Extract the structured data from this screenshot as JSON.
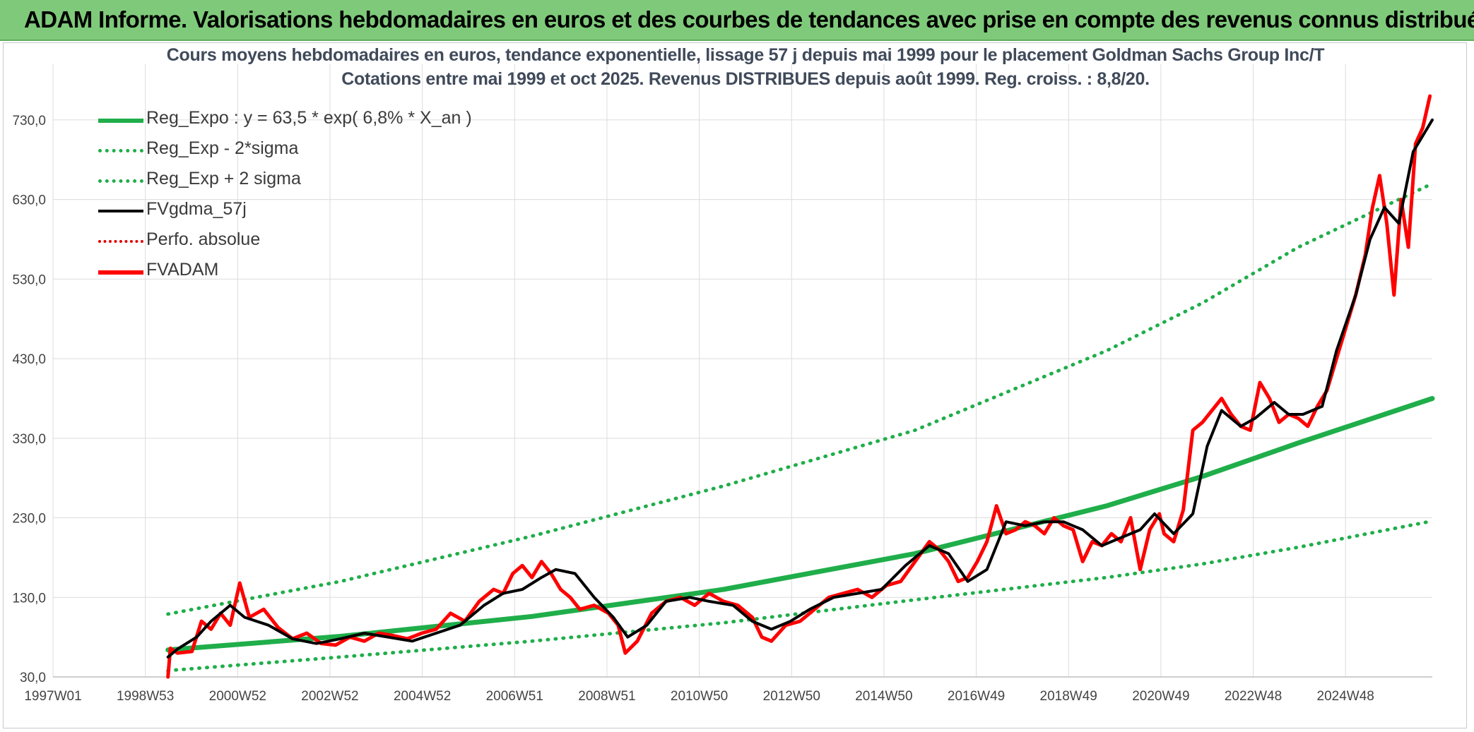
{
  "banner": {
    "title": "ADAM Informe. Valorisations hebdomadaires en euros et des courbes de tendances avec prise en compte des revenus connus distribués"
  },
  "colors": {
    "banner_bg": "#7fca7a",
    "reg_expo": "#1fae4a",
    "sigma": "#1fae4a",
    "gdma": "#000000",
    "perfo": "#e30000",
    "adam": "#ff0000",
    "grid": "#dcdcdc"
  },
  "chart_data": {
    "type": "line",
    "title": "Cours moyens hebdomadaires en euros, tendance exponentielle, lissage 57 j depuis mai 1999 pour le placement Goldman Sachs Group Inc/T",
    "subtitle": "Cotations entre mai 1999 et oct 2025. Revenus DISTRIBUES depuis août 1999. Reg. croiss. : 8,8/20.",
    "x_ticks": [
      "1997W01",
      "1998W53",
      "2000W52",
      "2002W52",
      "2004W52",
      "2006W51",
      "2008W51",
      "2010W50",
      "2012W50",
      "2014W50",
      "2016W49",
      "2018W49",
      "2020W49",
      "2022W48",
      "2024W48"
    ],
    "y_ticks": [
      "30,0",
      "130,0",
      "230,0",
      "330,0",
      "430,0",
      "530,0",
      "630,0",
      "730,0"
    ],
    "ylim": [
      30,
      800
    ],
    "xlim": [
      1997.0,
      2025.8
    ],
    "legend_position": "top-left",
    "grid": true,
    "series": [
      {
        "name": "Reg_Expo : y = 63,5 * exp( 6,8% *  X_an )",
        "style": "solid-thick",
        "x": [
          1999.4,
          2003,
          2007,
          2011,
          2015,
          2019,
          2021,
          2023,
          2025.8
        ],
        "values": [
          64,
          81,
          106,
          140,
          185,
          245,
          282,
          324,
          380
        ]
      },
      {
        "name": "Reg_Exp - 2*sigma",
        "style": "dotted",
        "x": [
          1999.4,
          2003,
          2007,
          2011,
          2015,
          2019,
          2021,
          2023,
          2025.8
        ],
        "values": [
          38,
          55,
          75,
          98,
          127,
          155,
          172,
          193,
          226
        ]
      },
      {
        "name": "Reg_Exp + 2 sigma",
        "style": "dotted",
        "x": [
          1999.4,
          2003,
          2007,
          2011,
          2015,
          2019,
          2021,
          2023,
          2025.8
        ],
        "values": [
          109,
          150,
          207,
          270,
          340,
          440,
          500,
          570,
          650
        ]
      },
      {
        "name": "FVgdma_57j",
        "style": "solid-thin",
        "x": [
          1999.4,
          1999.6,
          2000.0,
          2000.3,
          2000.7,
          2001.0,
          2001.5,
          2002.0,
          2002.5,
          2003.0,
          2003.5,
          2004.0,
          2004.5,
          2005.0,
          2005.5,
          2006.0,
          2006.4,
          2006.8,
          2007.2,
          2007.5,
          2007.9,
          2008.3,
          2008.7,
          2009.0,
          2009.4,
          2009.8,
          2010.3,
          2010.7,
          2011.2,
          2011.6,
          2012.0,
          2012.4,
          2012.8,
          2013.3,
          2013.8,
          2014.3,
          2014.8,
          2015.3,
          2015.7,
          2016.1,
          2016.5,
          2016.9,
          2017.3,
          2017.7,
          2018.1,
          2018.5,
          2018.9,
          2019.3,
          2019.7,
          2020.0,
          2020.4,
          2020.8,
          2021.1,
          2021.4,
          2021.8,
          2022.1,
          2022.5,
          2022.8,
          2023.1,
          2023.5,
          2023.8,
          2024.2,
          2024.5,
          2024.8,
          2025.1,
          2025.4,
          2025.8
        ],
        "values": [
          55,
          65,
          80,
          100,
          120,
          105,
          95,
          78,
          72,
          78,
          85,
          80,
          75,
          85,
          95,
          120,
          135,
          140,
          155,
          165,
          160,
          130,
          105,
          80,
          95,
          125,
          130,
          125,
          120,
          100,
          90,
          100,
          115,
          130,
          135,
          140,
          170,
          195,
          185,
          150,
          165,
          225,
          220,
          225,
          225,
          215,
          195,
          205,
          215,
          235,
          210,
          235,
          320,
          365,
          345,
          355,
          375,
          360,
          360,
          370,
          440,
          510,
          580,
          620,
          600,
          690,
          730
        ]
      },
      {
        "name": "Perfo. absolue",
        "style": "dotted-red",
        "x": [],
        "values": []
      },
      {
        "name": "FVADAM",
        "style": "solid-thick",
        "x": [
          1999.4,
          1999.45,
          1999.6,
          1999.9,
          2000.1,
          2000.3,
          2000.5,
          2000.7,
          2000.9,
          2001.1,
          2001.4,
          2001.7,
          2002.0,
          2002.3,
          2002.6,
          2002.9,
          2003.2,
          2003.5,
          2003.8,
          2004.1,
          2004.4,
          2004.7,
          2005.0,
          2005.3,
          2005.6,
          2005.9,
          2006.2,
          2006.4,
          2006.6,
          2006.8,
          2007.0,
          2007.2,
          2007.4,
          2007.6,
          2007.8,
          2008.0,
          2008.3,
          2008.6,
          2008.8,
          2008.95,
          2009.2,
          2009.5,
          2009.8,
          2010.1,
          2010.4,
          2010.7,
          2011.0,
          2011.3,
          2011.6,
          2011.8,
          2012.0,
          2012.3,
          2012.6,
          2012.9,
          2013.2,
          2013.5,
          2013.8,
          2014.1,
          2014.4,
          2014.7,
          2015.0,
          2015.3,
          2015.5,
          2015.7,
          2015.9,
          2016.1,
          2016.3,
          2016.5,
          2016.7,
          2016.9,
          2017.1,
          2017.3,
          2017.5,
          2017.7,
          2017.9,
          2018.1,
          2018.3,
          2018.5,
          2018.7,
          2018.9,
          2019.1,
          2019.3,
          2019.5,
          2019.7,
          2019.9,
          2020.1,
          2020.2,
          2020.4,
          2020.6,
          2020.8,
          2021.0,
          2021.2,
          2021.4,
          2021.6,
          2021.8,
          2022.0,
          2022.2,
          2022.4,
          2022.6,
          2022.8,
          2023.0,
          2023.2,
          2023.4,
          2023.6,
          2023.8,
          2024.0,
          2024.2,
          2024.4,
          2024.55,
          2024.7,
          2024.85,
          2025.0,
          2025.15,
          2025.3,
          2025.45,
          2025.6,
          2025.75
        ],
        "values": [
          30,
          66,
          60,
          62,
          100,
          90,
          110,
          95,
          148,
          105,
          115,
          92,
          78,
          85,
          72,
          70,
          80,
          75,
          85,
          82,
          78,
          85,
          90,
          110,
          100,
          125,
          140,
          135,
          160,
          170,
          155,
          175,
          160,
          140,
          130,
          115,
          120,
          110,
          95,
          60,
          75,
          110,
          125,
          130,
          120,
          135,
          125,
          120,
          105,
          80,
          75,
          95,
          100,
          115,
          130,
          135,
          140,
          130,
          145,
          150,
          175,
          200,
          190,
          175,
          150,
          155,
          175,
          200,
          245,
          210,
          215,
          225,
          220,
          210,
          230,
          220,
          215,
          175,
          200,
          195,
          210,
          200,
          230,
          165,
          215,
          235,
          210,
          200,
          240,
          340,
          350,
          365,
          380,
          360,
          345,
          340,
          400,
          380,
          350,
          360,
          355,
          345,
          370,
          390,
          430,
          470,
          510,
          560,
          620,
          660,
          600,
          510,
          630,
          570,
          700,
          720,
          760
        ]
      }
    ]
  }
}
